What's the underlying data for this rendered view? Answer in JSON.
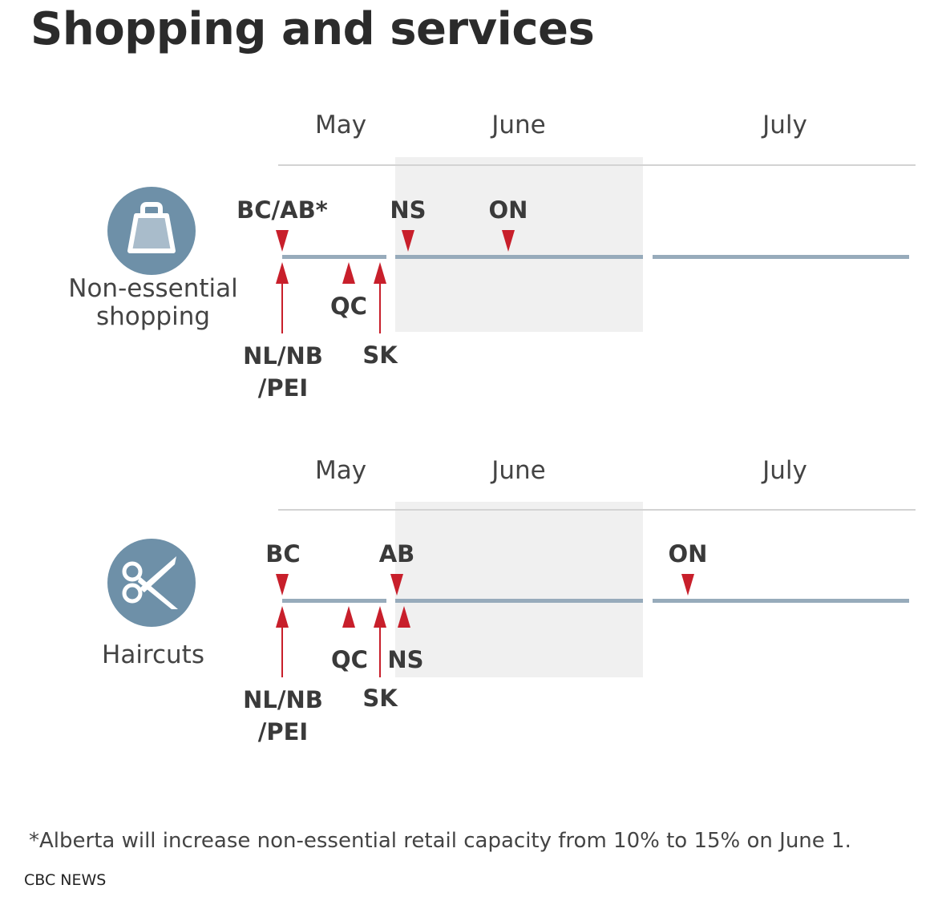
{
  "title": "Shopping and services",
  "months": [
    "May",
    "June",
    "July"
  ],
  "panels": [
    {
      "category": [
        "Non-essential",
        "shopping"
      ],
      "icon": "shopping-bag-icon",
      "markers_above": [
        "BC/AB*",
        "NS",
        "ON"
      ],
      "markers_below": [
        "NL/NB",
        "/PEI",
        "QC",
        "SK"
      ]
    },
    {
      "category": [
        "Haircuts"
      ],
      "icon": "scissors-icon",
      "markers_above": [
        "BC",
        "AB",
        "ON"
      ],
      "markers_below": [
        "NL/NB",
        "/PEI",
        "QC",
        "SK",
        "NS"
      ]
    }
  ],
  "footnote": "*Alberta will increase non-essential retail capacity from 10% to 15% on June 1.",
  "source": "CBC NEWS",
  "colors": {
    "marker": "#c81f2b",
    "timeline": "#97abbb",
    "icon": "#6e90a8",
    "band": "#f0f0f0"
  }
}
